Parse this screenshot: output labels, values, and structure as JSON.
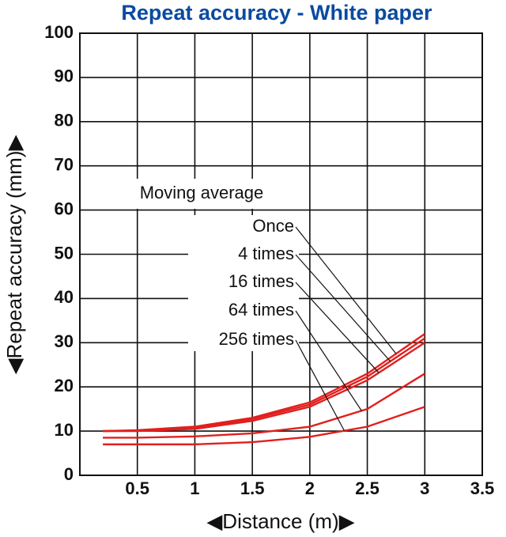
{
  "chart_data": {
    "type": "line",
    "title": "Repeat accuracy - White paper",
    "x_label": "◀Distance (m)▶",
    "y_label": "◀Repeat accuracy (mm)▶",
    "annotation": "Moving average",
    "x": [
      0.2,
      0.5,
      1,
      1.5,
      2,
      2.5,
      3
    ],
    "series": [
      {
        "name": "Once",
        "color": "#e0201e",
        "values": [
          10,
          10.2,
          11,
          13,
          16.5,
          23,
          32
        ]
      },
      {
        "name": "4 times",
        "color": "#e0201e",
        "values": [
          10,
          10.1,
          10.8,
          12.7,
          16,
          22.3,
          31
        ]
      },
      {
        "name": "16 times",
        "color": "#e0201e",
        "values": [
          10,
          10,
          10.5,
          12.3,
          15.5,
          21.5,
          30
        ]
      },
      {
        "name": "64 times",
        "color": "#e0201e",
        "values": [
          8.5,
          8.5,
          8.8,
          9.5,
          11,
          15,
          23
        ]
      },
      {
        "name": "256 times",
        "color": "#e0201e",
        "values": [
          7,
          7,
          7,
          7.5,
          8.7,
          11,
          15.5
        ]
      }
    ],
    "xlim": [
      0,
      3.5
    ],
    "xticks": [
      0.5,
      1,
      1.5,
      2,
      2.5,
      3,
      3.5
    ],
    "ylim": [
      0,
      100
    ],
    "yticks": [
      0,
      10,
      20,
      30,
      40,
      50,
      60,
      70,
      80,
      90,
      100
    ],
    "grid": true
  }
}
